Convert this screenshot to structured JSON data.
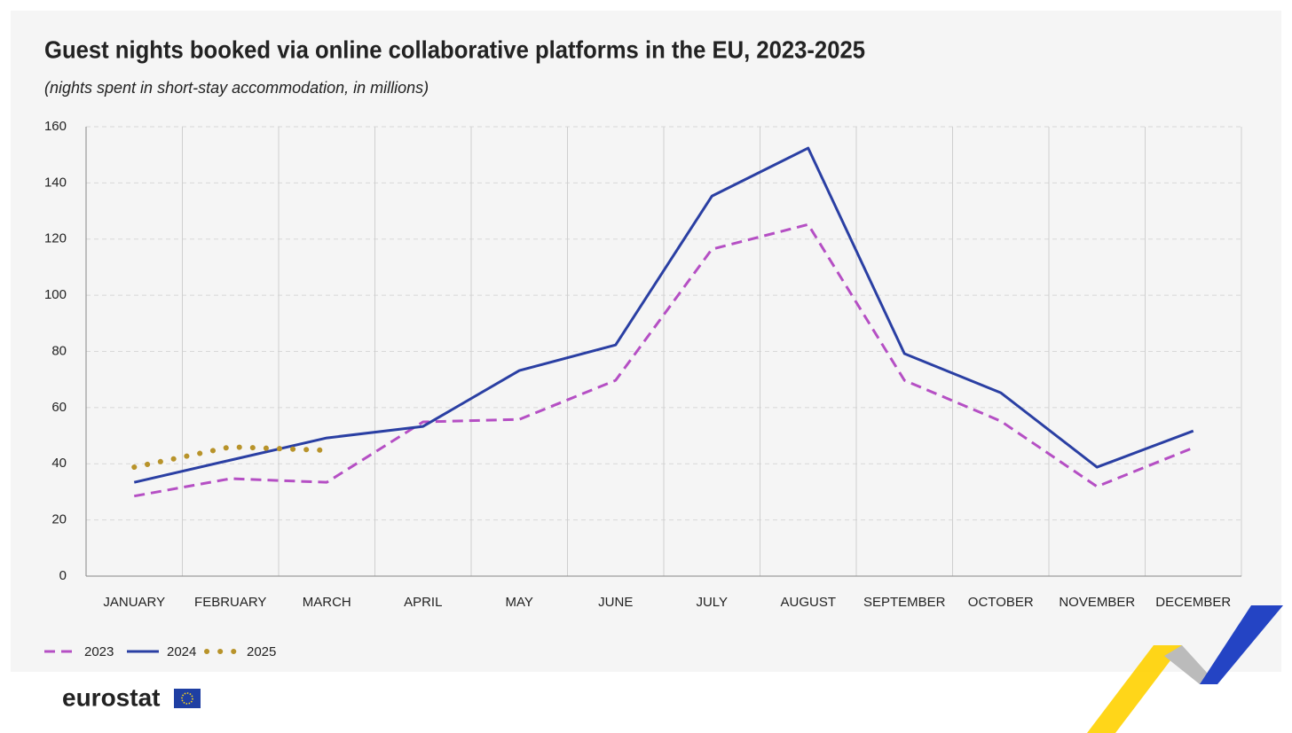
{
  "chart_data": {
    "type": "line",
    "title": "Guest nights booked via online collaborative platforms in the EU, 2023-2025",
    "subtitle": "(nights spent in short-stay accommodation, in millions)",
    "categories": [
      "JANUARY",
      "FEBRUARY",
      "MARCH",
      "APRIL",
      "MAY",
      "JUNE",
      "JULY",
      "AUGUST",
      "SEPTEMBER",
      "OCTOBER",
      "NOVEMBER",
      "DECEMBER"
    ],
    "series": [
      {
        "name": "2023",
        "color": "#b54fc4",
        "line_style": "dashed",
        "values": [
          28.5,
          34.7,
          33.4,
          54.9,
          55.8,
          69.7,
          116.4,
          125.2,
          69.7,
          55.2,
          31.9,
          45.7
        ]
      },
      {
        "name": "2024",
        "color": "#2a3fa3",
        "line_style": "solid",
        "values": [
          33.4,
          41.3,
          49.2,
          53.3,
          73.2,
          82.3,
          135.3,
          152.4,
          79.2,
          65.3,
          38.8,
          51.7
        ]
      },
      {
        "name": "2025",
        "color": "#b8932a",
        "line_style": "dotted",
        "values": [
          38.8,
          46.0,
          44.8,
          null,
          null,
          null,
          null,
          null,
          null,
          null,
          null,
          null
        ]
      }
    ],
    "ylim": [
      0,
      160
    ],
    "yticks": [
      0,
      20,
      40,
      60,
      80,
      100,
      120,
      140,
      160
    ],
    "grid": true,
    "legend": "bottom-left",
    "source_logo": "eurostat"
  }
}
